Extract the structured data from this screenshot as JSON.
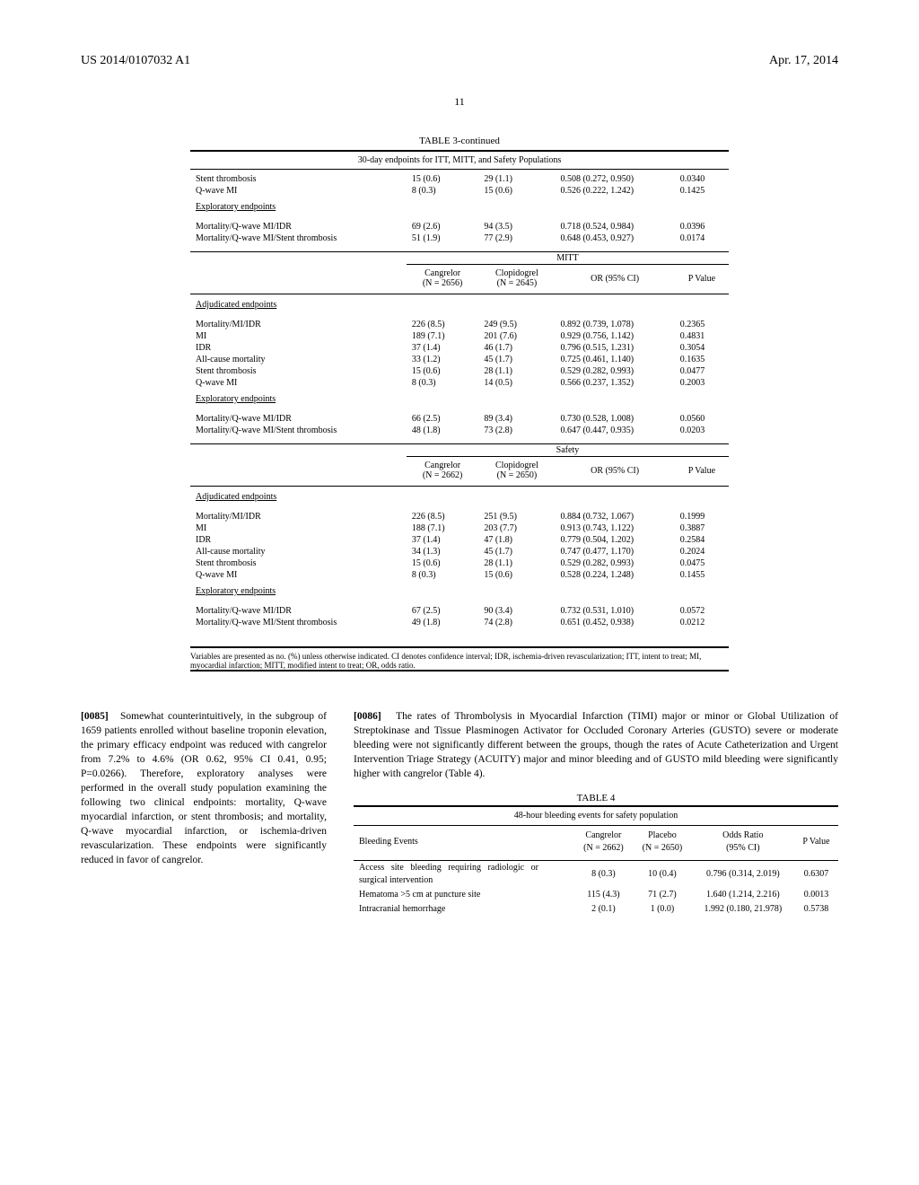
{
  "header": {
    "pub_number": "US 2014/0107032 A1",
    "date": "Apr. 17, 2014",
    "page_num": "11"
  },
  "table3": {
    "title": "TABLE 3-continued",
    "caption": "30-day endpoints for ITT, MITT, and Safety Populations",
    "sections_top": [
      {
        "rows": [
          {
            "label": "Stent thrombosis",
            "c1": "15 (0.6)",
            "c2": "29 (1.1)",
            "or": "0.508 (0.272, 0.950)",
            "p": "0.0340"
          },
          {
            "label": "Q-wave MI",
            "c1": "8 (0.3)",
            "c2": "15 (0.6)",
            "or": "0.526 (0.222, 1.242)",
            "p": "0.1425"
          }
        ],
        "subhead": "Exploratory endpoints",
        "rows2": [
          {
            "label": "Mortality/Q-wave MI/IDR",
            "c1": "69 (2.6)",
            "c2": "94 (3.5)",
            "or": "0.718 (0.524, 0.984)",
            "p": "0.0396"
          },
          {
            "label": "Mortality/Q-wave MI/Stent thrombosis",
            "c1": "51 (1.9)",
            "c2": "77 (2.9)",
            "or": "0.648 (0.453, 0.927)",
            "p": "0.0174"
          }
        ]
      }
    ],
    "groups": [
      {
        "group_label": "MITT",
        "col_headers": {
          "c1": "Cangrelor",
          "c1n": "(N = 2656)",
          "c2": "Clopidogrel",
          "c2n": "(N = 2645)",
          "or": "OR (95% CI)",
          "p": "P Value"
        },
        "section_label": "Adjudicated endpoints",
        "rows": [
          {
            "label": "Mortality/MI/IDR",
            "c1": "226 (8.5)",
            "c2": "249 (9.5)",
            "or": "0.892 (0.739, 1.078)",
            "p": "0.2365"
          },
          {
            "label": "MI",
            "c1": "189 (7.1)",
            "c2": "201 (7.6)",
            "or": "0.929 (0.756, 1.142)",
            "p": "0.4831"
          },
          {
            "label": "IDR",
            "c1": "37 (1.4)",
            "c2": "46 (1.7)",
            "or": "0.796 (0.515, 1.231)",
            "p": "0.3054"
          },
          {
            "label": "All-cause mortality",
            "c1": "33 (1.2)",
            "c2": "45 (1.7)",
            "or": "0.725 (0.461, 1.140)",
            "p": "0.1635"
          },
          {
            "label": "Stent thrombosis",
            "c1": "15 (0.6)",
            "c2": "28 (1.1)",
            "or": "0.529 (0.282, 0.993)",
            "p": "0.0477"
          },
          {
            "label": "Q-wave MI",
            "c1": "8 (0.3)",
            "c2": "14 (0.5)",
            "or": "0.566 (0.237, 1.352)",
            "p": "0.2003"
          }
        ],
        "sub_label": "Exploratory endpoints",
        "rows2": [
          {
            "label": "Mortality/Q-wave MI/IDR",
            "c1": "66 (2.5)",
            "c2": "89 (3.4)",
            "or": "0.730 (0.528, 1.008)",
            "p": "0.0560"
          },
          {
            "label": "Mortality/Q-wave MI/Stent thrombosis",
            "c1": "48 (1.8)",
            "c2": "73 (2.8)",
            "or": "0.647 (0.447, 0.935)",
            "p": "0.0203"
          }
        ]
      },
      {
        "group_label": "Safety",
        "col_headers": {
          "c1": "Cangrelor",
          "c1n": "(N = 2662)",
          "c2": "Clopidogrel",
          "c2n": "(N = 2650)",
          "or": "OR (95% CI)",
          "p": "P Value"
        },
        "section_label": "Adjudicated endpoints",
        "rows": [
          {
            "label": "Mortality/MI/IDR",
            "c1": "226 (8.5)",
            "c2": "251 (9.5)",
            "or": "0.884 (0.732, 1.067)",
            "p": "0.1999"
          },
          {
            "label": "MI",
            "c1": "188 (7.1)",
            "c2": "203 (7.7)",
            "or": "0.913 (0.743, 1.122)",
            "p": "0.3887"
          },
          {
            "label": "IDR",
            "c1": "37 (1.4)",
            "c2": "47 (1.8)",
            "or": "0.779 (0.504, 1.202)",
            "p": "0.2584"
          },
          {
            "label": "All-cause mortality",
            "c1": "34 (1.3)",
            "c2": "45 (1.7)",
            "or": "0.747 (0.477, 1.170)",
            "p": "0.2024"
          },
          {
            "label": "Stent thrombosis",
            "c1": "15 (0.6)",
            "c2": "28 (1.1)",
            "or": "0.529 (0.282, 0.993)",
            "p": "0.0475"
          },
          {
            "label": "Q-wave MI",
            "c1": "8 (0.3)",
            "c2": "15 (0.6)",
            "or": "0.528 (0.224, 1.248)",
            "p": "0.1455"
          }
        ],
        "sub_label": "Exploratory endpoints",
        "rows2": [
          {
            "label": "Mortality/Q-wave MI/IDR",
            "c1": "67 (2.5)",
            "c2": "90 (3.4)",
            "or": "0.732 (0.531, 1.010)",
            "p": "0.0572"
          },
          {
            "label": "Mortality/Q-wave MI/Stent thrombosis",
            "c1": "49 (1.8)",
            "c2": "74 (2.8)",
            "or": "0.651 (0.452, 0.938)",
            "p": "0.0212"
          }
        ]
      }
    ],
    "footnote": "Variables are presented as no. (%) unless otherwise indicated. CI denotes confidence interval; IDR, ischemia-driven revascularization; ITT, intent to treat; MI, myocardial infarction; MITT, modified intent to treat; OR, odds ratio."
  },
  "paragraphs": {
    "p85_num": "[0085]",
    "p85": "Somewhat counterintuitively, in the subgroup of 1659 patients enrolled without baseline troponin elevation, the primary efficacy endpoint was reduced with cangrelor from 7.2% to 4.6% (OR 0.62, 95% CI 0.41, 0.95; P=0.0266). Therefore, exploratory analyses were performed in the overall study population examining the following two clinical endpoints: mortality, Q-wave myocardial infarction, or stent thrombosis; and mortality, Q-wave myocardial infarction, or ischemia-driven revascularization. These endpoints were significantly reduced in favor of cangrelor.",
    "p86_num": "[0086]",
    "p86": "The rates of Thrombolysis in Myocardial Infarction (TIMI) major or minor or Global Utilization of Streptokinase and Tissue Plasminogen Activator for Occluded Coronary Arteries (GUSTO) severe or moderate bleeding were not significantly different between the groups, though the rates of Acute Catheterization and Urgent Intervention Triage Strategy (ACUITY) major and minor bleeding and of GUSTO mild bleeding were significantly higher with cangrelor (Table 4)."
  },
  "table4": {
    "title": "TABLE 4",
    "caption": "48-hour bleeding events for safety population",
    "col_headers": {
      "c0": "Bleeding Events",
      "c1": "Cangrelor",
      "c1n": "(N = 2662)",
      "c2": "Placebo",
      "c2n": "(N = 2650)",
      "or": "Odds Ratio",
      "orn": "(95% CI)",
      "p": "P Value"
    },
    "rows": [
      {
        "label": "Access site bleeding requiring radiologic or surgical intervention",
        "c1": "8 (0.3)",
        "c2": "10 (0.4)",
        "or": "0.796 (0.314, 2.019)",
        "p": "0.6307"
      },
      {
        "label": "Hematoma >5 cm at puncture site",
        "c1": "115 (4.3)",
        "c2": "71 (2.7)",
        "or": "1.640 (1.214, 2.216)",
        "p": "0.0013"
      },
      {
        "label": "Intracranial hemorrhage",
        "c1": "2 (0.1)",
        "c2": "1 (0.0)",
        "or": "1.992 (0.180, 21.978)",
        "p": "0.5738"
      }
    ]
  }
}
